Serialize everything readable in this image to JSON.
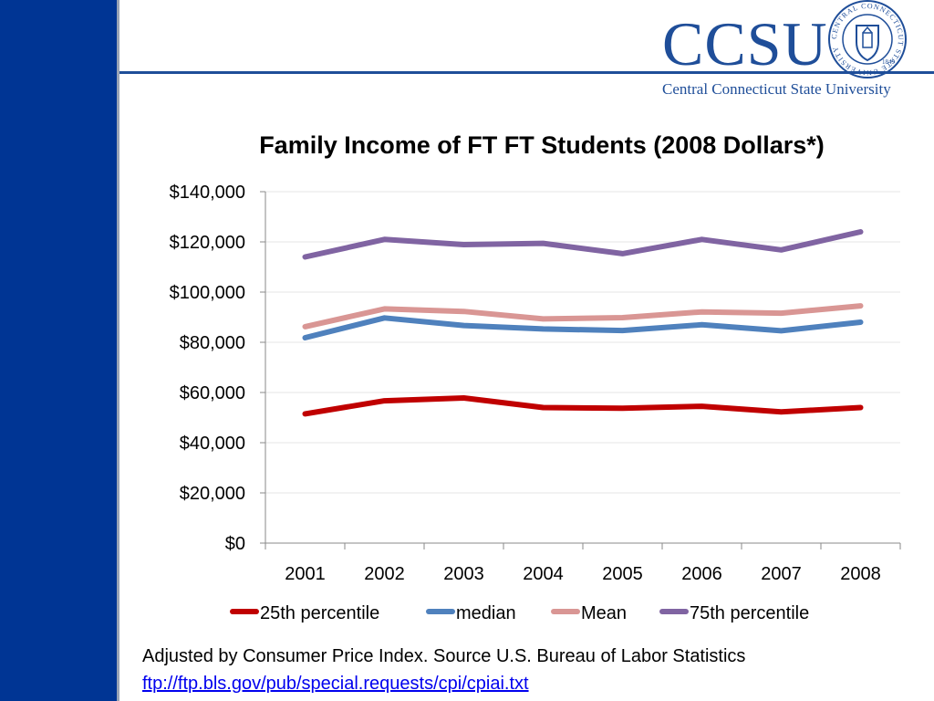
{
  "logo": {
    "text": "CCSU",
    "subtitle": "Central Connecticut State University",
    "seal_text": "CENTRAL CONNECTICUT STATE UNIVERSITY",
    "seal_year": "1849"
  },
  "colors": {
    "sidebar": "#003594",
    "brand": "#1f4e99"
  },
  "chart_data": {
    "type": "line",
    "title": "Family Income of FT FT Students (2008 Dollars*)",
    "categories": [
      "2001",
      "2002",
      "2003",
      "2004",
      "2005",
      "2006",
      "2007",
      "2008"
    ],
    "ylim": [
      0,
      140000
    ],
    "yticks": [
      0,
      20000,
      40000,
      60000,
      80000,
      100000,
      120000,
      140000
    ],
    "ytick_labels": [
      "$0",
      "$20,000",
      "$40,000",
      "$60,000",
      "$80,000",
      "$100,000",
      "$120,000",
      "$140,000"
    ],
    "grid": true,
    "legend_position": "bottom",
    "series": [
      {
        "name": "25th percentile",
        "color": "#c00000",
        "values": [
          51500,
          56700,
          57800,
          54000,
          53700,
          54500,
          52300,
          54000
        ]
      },
      {
        "name": "median",
        "color": "#4f81bd",
        "values": [
          81800,
          89700,
          86700,
          85300,
          84700,
          87000,
          84600,
          88000
        ]
      },
      {
        "name": "Mean",
        "color": "#d99694",
        "values": [
          86200,
          93300,
          92300,
          89300,
          89800,
          92100,
          91600,
          94500
        ]
      },
      {
        "name": "75th percentile",
        "color": "#8064a2",
        "values": [
          114000,
          121000,
          118900,
          119400,
          115300,
          121000,
          116800,
          124000
        ]
      }
    ]
  },
  "footnote": {
    "text": "Adjusted by Consumer Price Index. Source U.S. Bureau of Labor Statistics",
    "link": "ftp://ftp.bls.gov/pub/special.requests/cpi/cpiai.txt"
  }
}
